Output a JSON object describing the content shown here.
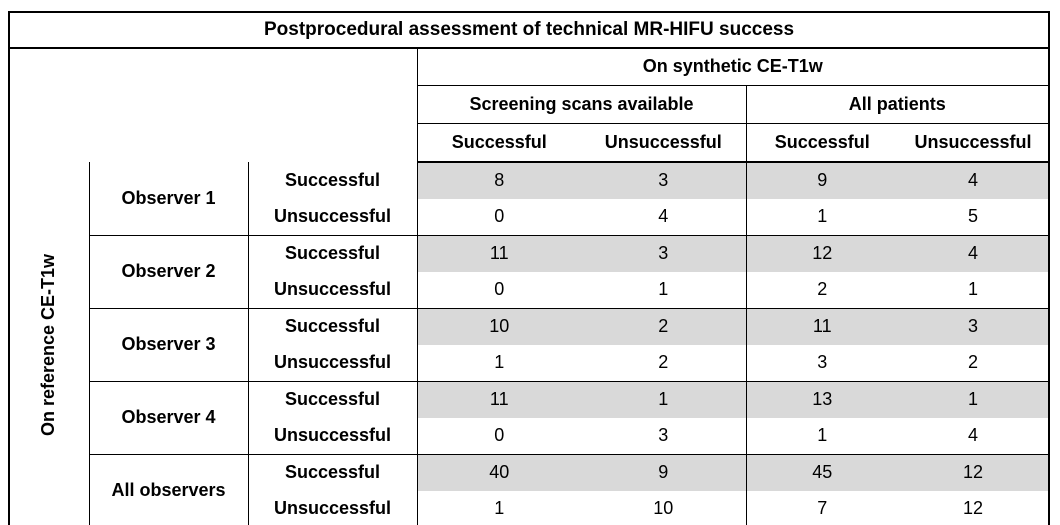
{
  "title": "Postprocedural assessment of technical MR-HIFU success",
  "colors": {
    "shaded_row_background": "#d9d9d9",
    "border": "#000000",
    "background": "#ffffff"
  },
  "column_header": {
    "synthetic_label": "On synthetic CE-T1w",
    "groups": [
      {
        "label": "Screening scans available",
        "sub": [
          "Successful",
          "Unsuccessful"
        ]
      },
      {
        "label": "All patients",
        "sub": [
          "Successful",
          "Unsuccessful"
        ]
      }
    ]
  },
  "row_header": {
    "reference_label": "On reference CE-T1w"
  },
  "body": {
    "row_labels": [
      "Successful",
      "Unsuccessful"
    ],
    "groups": [
      {
        "observer": "Observer 1",
        "successful": [
          8,
          3,
          9,
          4
        ],
        "unsuccessful": [
          0,
          4,
          1,
          5
        ]
      },
      {
        "observer": "Observer 2",
        "successful": [
          11,
          3,
          12,
          4
        ],
        "unsuccessful": [
          0,
          1,
          2,
          1
        ]
      },
      {
        "observer": "Observer 3",
        "successful": [
          10,
          2,
          11,
          3
        ],
        "unsuccessful": [
          1,
          2,
          3,
          2
        ]
      },
      {
        "observer": "Observer 4",
        "successful": [
          11,
          1,
          13,
          1
        ],
        "unsuccessful": [
          0,
          3,
          1,
          4
        ]
      },
      {
        "observer": "All observers",
        "successful": [
          40,
          9,
          45,
          12
        ],
        "unsuccessful": [
          1,
          10,
          7,
          12
        ]
      }
    ]
  },
  "chart_data": {
    "type": "table",
    "title": "Postprocedural assessment of technical MR-HIFU success",
    "row_axis": "On reference CE-T1w",
    "column_axis": "On synthetic CE-T1w",
    "columns": [
      "Screening scans available - Successful",
      "Screening scans available - Unsuccessful",
      "All patients - Successful",
      "All patients - Unsuccessful"
    ],
    "rows": [
      {
        "observer": "Observer 1",
        "reference_outcome": "Successful",
        "values": [
          8,
          3,
          9,
          4
        ]
      },
      {
        "observer": "Observer 1",
        "reference_outcome": "Unsuccessful",
        "values": [
          0,
          4,
          1,
          5
        ]
      },
      {
        "observer": "Observer 2",
        "reference_outcome": "Successful",
        "values": [
          11,
          3,
          12,
          4
        ]
      },
      {
        "observer": "Observer 2",
        "reference_outcome": "Unsuccessful",
        "values": [
          0,
          1,
          2,
          1
        ]
      },
      {
        "observer": "Observer 3",
        "reference_outcome": "Successful",
        "values": [
          10,
          2,
          11,
          3
        ]
      },
      {
        "observer": "Observer 3",
        "reference_outcome": "Unsuccessful",
        "values": [
          1,
          2,
          3,
          2
        ]
      },
      {
        "observer": "Observer 4",
        "reference_outcome": "Successful",
        "values": [
          11,
          1,
          13,
          1
        ]
      },
      {
        "observer": "Observer 4",
        "reference_outcome": "Unsuccessful",
        "values": [
          0,
          3,
          1,
          4
        ]
      },
      {
        "observer": "All observers",
        "reference_outcome": "Successful",
        "values": [
          40,
          9,
          45,
          12
        ]
      },
      {
        "observer": "All observers",
        "reference_outcome": "Unsuccessful",
        "values": [
          1,
          10,
          7,
          12
        ]
      }
    ]
  }
}
